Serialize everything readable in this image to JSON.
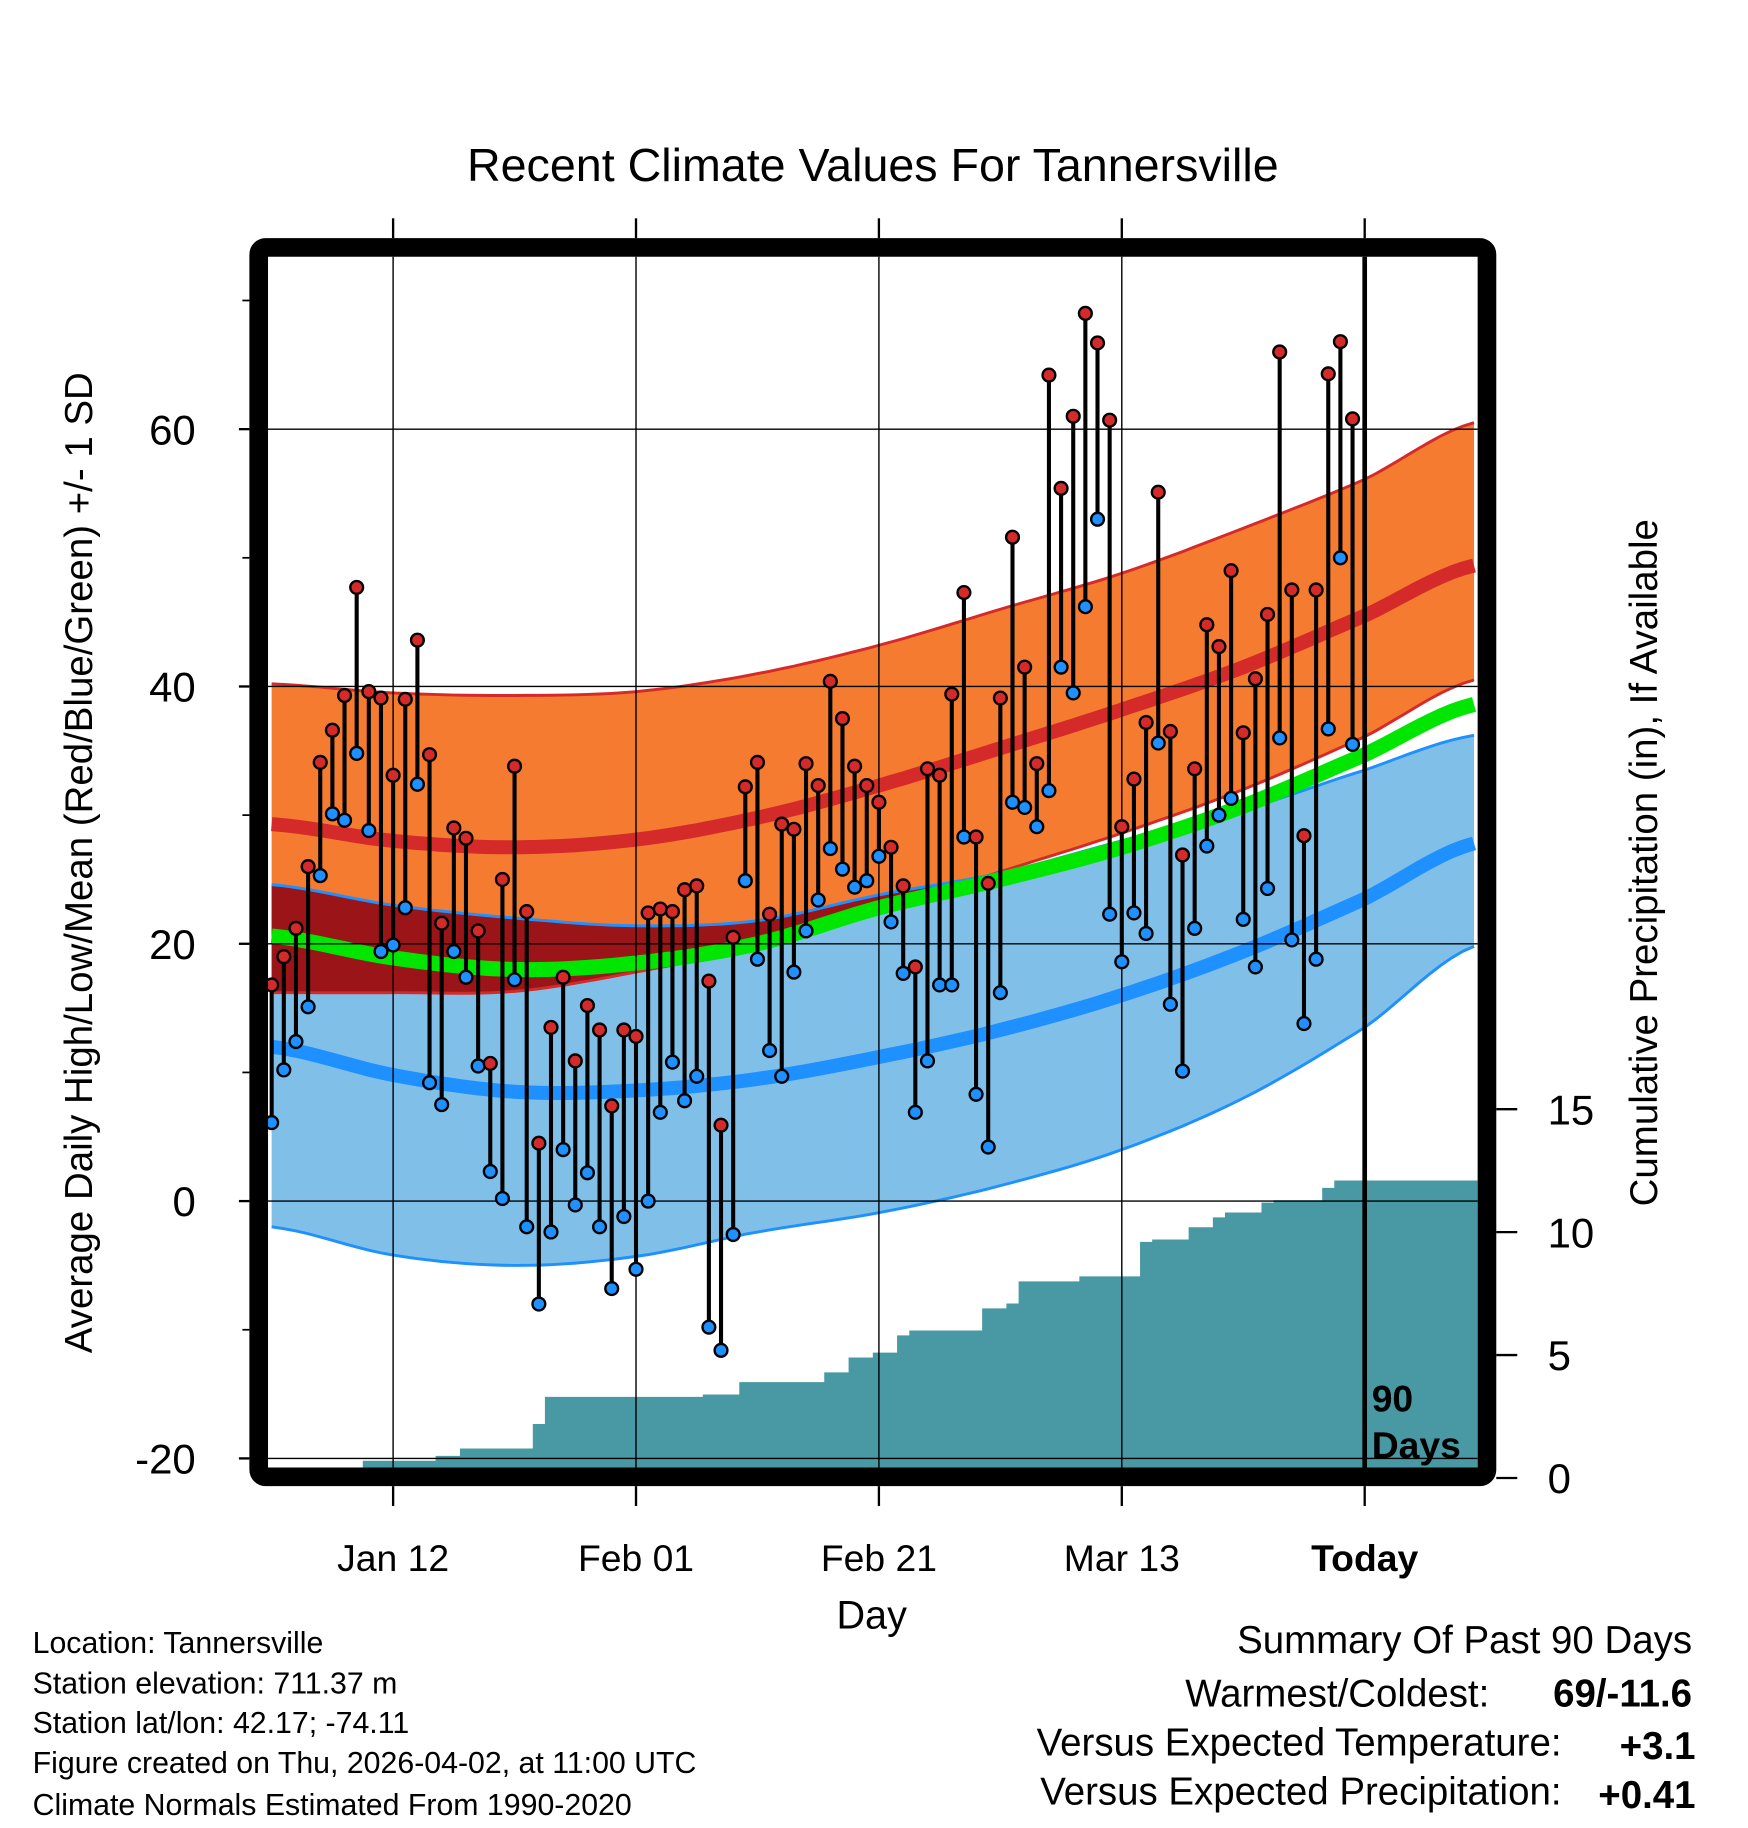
{
  "chart_data": {
    "type": "line",
    "title": "Recent Climate Values For Tannersville",
    "xlabel": "Day",
    "ylabel": "Average Daily High/Low/Mean (Red/Blue/Green) +/- 1 SD",
    "y2label": "Cumulative Precipitation (in), If Available",
    "xlim_days": [
      -0.3,
      99.3
    ],
    "ylim": [
      -20.8,
      73.4
    ],
    "y2lim": [
      0,
      15
    ],
    "grid": true,
    "x_ticks": [
      {
        "day": 10,
        "label": "Jan 12"
      },
      {
        "day": 30,
        "label": "Feb 01"
      },
      {
        "day": 50,
        "label": "Feb 21"
      },
      {
        "day": 70,
        "label": "Mar 13"
      },
      {
        "day": 90,
        "label": "Today"
      }
    ],
    "y_ticks": [
      {
        "value": 60,
        "label": "60"
      },
      {
        "value": 40,
        "label": "40"
      },
      {
        "value": 20,
        "label": "20"
      },
      {
        "value": 0,
        "label": "0"
      },
      {
        "value": -20,
        "label": "-20"
      }
    ],
    "y_minor_ticks": [
      70,
      50,
      30,
      10,
      -10
    ],
    "y2_ticks": [
      {
        "value": 15,
        "label": "15"
      },
      {
        "value": 10,
        "label": "10"
      },
      {
        "value": 5,
        "label": "5"
      },
      {
        "value": 0,
        "label": "0"
      }
    ],
    "period_label_1": "90",
    "period_label_2": "Days",
    "today_day": 90,
    "normals": {
      "days": [
        0,
        10,
        20,
        30,
        40,
        50,
        60,
        70,
        80,
        90,
        99
      ],
      "high_mean": [
        29.3,
        28.0,
        27.5,
        28.1,
        29.8,
        32.3,
        35.2,
        38.2,
        41.5,
        45.5,
        49.4
      ],
      "high_plus_sd": [
        40.2,
        39.5,
        39.3,
        39.6,
        41.0,
        43.2,
        46.0,
        48.8,
        52.3,
        56.1,
        60.5
      ],
      "high_minus_sd": [
        16.2,
        16.2,
        16.3,
        17.8,
        19.8,
        22.6,
        25.6,
        28.6,
        32.0,
        36.1,
        40.5
      ],
      "low_mean": [
        12.0,
        9.8,
        8.5,
        8.6,
        9.5,
        11.2,
        13.3,
        16.0,
        19.4,
        23.5,
        27.8
      ],
      "low_plus_sd": [
        24.6,
        23.0,
        22.0,
        21.4,
        21.8,
        23.8,
        25.5,
        28.0,
        30.4,
        33.5,
        36.2
      ],
      "low_minus_sd": [
        -2.0,
        -4.2,
        -5.0,
        -4.3,
        -2.4,
        -0.9,
        1.2,
        4.0,
        8.0,
        13.5,
        19.8
      ],
      "mean": [
        20.6,
        18.9,
        18.0,
        18.5,
        20.0,
        22.8,
        25.0,
        27.5,
        30.7,
        34.7,
        38.6
      ]
    },
    "series": [
      {
        "name": "Daily High",
        "color": "#d42a2a",
        "values": [
          16.8,
          19.0,
          21.2,
          26.0,
          34.1,
          36.6,
          39.3,
          47.7,
          39.6,
          39.1,
          33.1,
          39.0,
          43.6,
          34.7,
          21.6,
          29.0,
          28.2,
          21.0,
          10.7,
          25.0,
          33.8,
          22.5,
          4.5,
          13.5,
          17.4,
          10.9,
          15.2,
          13.3,
          7.4,
          13.3,
          12.8,
          22.4,
          22.7,
          22.5,
          24.2,
          24.5,
          17.1,
          5.9,
          20.5,
          32.2,
          34.1,
          22.3,
          29.3,
          28.9,
          34.0,
          32.3,
          40.4,
          37.5,
          33.8,
          32.3,
          31.0,
          27.5,
          24.5,
          18.2,
          33.6,
          33.1,
          39.4,
          47.3,
          28.3,
          24.7,
          39.1,
          51.6,
          41.5,
          34.0,
          64.2,
          55.4,
          61.0,
          69.0,
          66.7,
          60.7,
          29.1,
          32.8,
          37.2,
          55.1,
          36.5,
          26.9,
          33.6,
          44.8,
          43.1,
          49.0,
          36.4,
          40.6,
          45.6,
          66.0,
          47.5,
          28.4,
          47.5,
          64.3,
          66.8,
          60.8
        ]
      },
      {
        "name": "Daily Low",
        "color": "#1e90ff",
        "values": [
          6.1,
          10.2,
          12.4,
          15.1,
          25.3,
          30.1,
          29.6,
          34.8,
          28.8,
          19.4,
          19.9,
          22.8,
          32.4,
          9.2,
          7.5,
          19.4,
          17.4,
          10.5,
          2.3,
          0.2,
          17.2,
          -2.0,
          -8.0,
          -2.4,
          4.0,
          -0.3,
          2.2,
          -2.0,
          -6.8,
          -1.2,
          -5.3,
          0.0,
          6.9,
          10.8,
          7.8,
          9.7,
          -9.8,
          -11.6,
          -2.6,
          24.9,
          18.8,
          11.7,
          9.7,
          17.8,
          21.0,
          23.4,
          27.4,
          25.8,
          24.4,
          24.9,
          26.8,
          21.7,
          17.7,
          6.9,
          10.9,
          16.8,
          16.8,
          28.3,
          8.3,
          4.2,
          16.2,
          31.0,
          30.6,
          29.1,
          31.9,
          41.5,
          39.5,
          46.2,
          53.0,
          22.3,
          18.6,
          22.4,
          20.8,
          35.6,
          15.3,
          10.1,
          21.2,
          27.6,
          30.0,
          31.3,
          21.9,
          18.2,
          24.3,
          36.0,
          20.3,
          13.8,
          18.8,
          36.7,
          50.0,
          35.5
        ]
      },
      {
        "name": "Cumulative Precipitation",
        "color": "#4899a3",
        "axis": "right",
        "values": [
          0,
          0,
          0,
          0,
          0,
          0,
          0,
          0,
          0.7,
          0.7,
          0.7,
          0.7,
          0.7,
          0.7,
          0.9,
          0.9,
          1.2,
          1.2,
          1.2,
          1.2,
          1.2,
          1.2,
          2.2,
          3.3,
          3.3,
          3.3,
          3.3,
          3.3,
          3.3,
          3.3,
          3.3,
          3.3,
          3.3,
          3.3,
          3.3,
          3.3,
          3.4,
          3.4,
          3.4,
          3.9,
          3.9,
          3.9,
          3.9,
          3.9,
          3.9,
          3.9,
          4.3,
          4.3,
          4.9,
          4.9,
          5.1,
          5.1,
          5.8,
          6.0,
          6.0,
          6.0,
          6.0,
          6.0,
          6.0,
          6.9,
          6.9,
          7.1,
          8.0,
          8.0,
          8.0,
          8.0,
          8.0,
          8.2,
          8.2,
          8.2,
          8.2,
          8.2,
          9.6,
          9.7,
          9.7,
          9.7,
          10.2,
          10.2,
          10.6,
          10.8,
          10.8,
          10.8,
          11.2,
          11.3,
          11.3,
          11.3,
          11.3,
          11.8,
          12.1,
          12.1
        ]
      }
    ],
    "colors": {
      "high_band": "#f47b30",
      "high_line": "#d42a2a",
      "overlap_band": "#9b1418",
      "low_band": "#80c0e8",
      "low_line": "#1e90ff",
      "mean_line": "#00e600",
      "precip": "#4899a3"
    }
  },
  "footer": {
    "location": "Location: Tannersville",
    "elevation": "Station elevation: 711.37 m",
    "latlon": "Station lat/lon: 42.17; -74.11",
    "created": "Figure created on Thu, 2026-04-02, at 11:00 UTC",
    "normals": "Climate Normals Estimated From 1990-2020"
  },
  "summary": {
    "title": "Summary Of Past 90 Days",
    "warm_cold_label": "Warmest/Coldest:",
    "warm_cold_value": "69/-11.6",
    "temp_label": "Versus Expected Temperature:",
    "temp_value": "+3.1",
    "temp_color": "#d42a2a",
    "precip_label": "Versus Expected Precipitation:",
    "precip_value": "+0.41",
    "precip_color": "#22cc22"
  }
}
